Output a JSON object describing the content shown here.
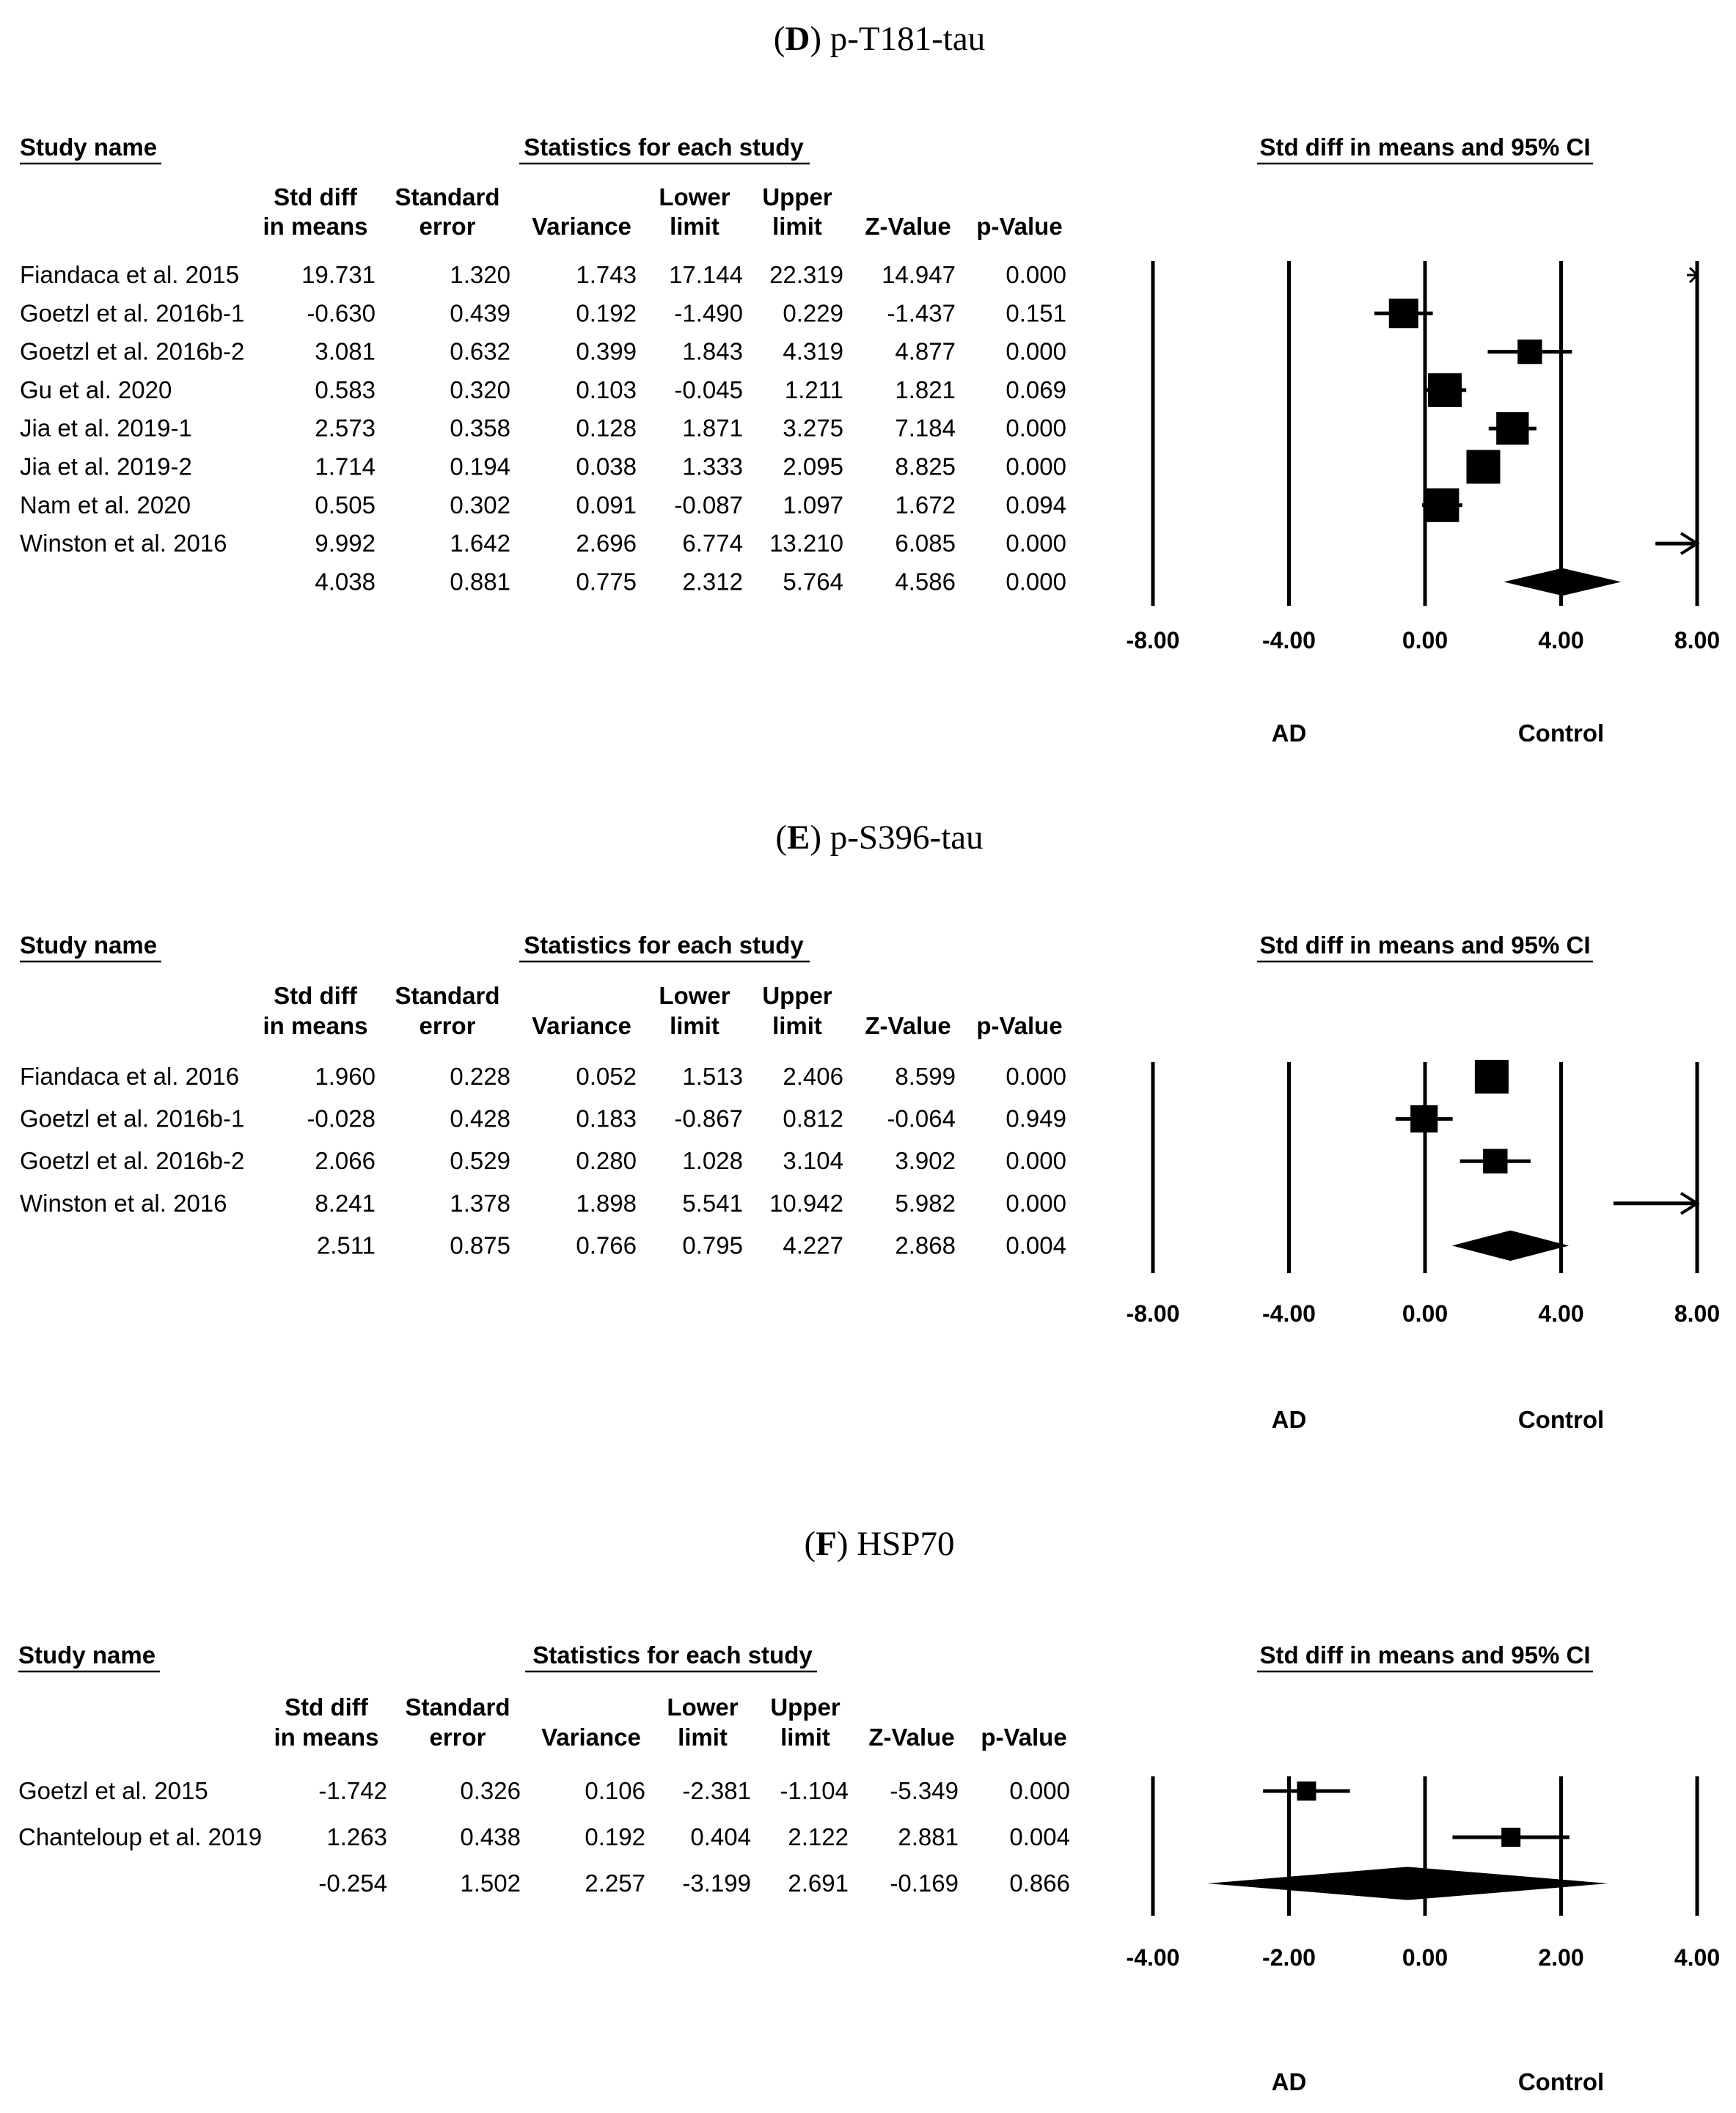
{
  "column_headers": {
    "study_name": "Study name",
    "statistics": "Statistics for each study",
    "ci_title": "Std diff in means and 95% CI",
    "std_diff": [
      "Std diff",
      "in means"
    ],
    "std_error": [
      "Standard",
      "error"
    ],
    "variance": "Variance",
    "lower": [
      "Lower",
      "limit"
    ],
    "upper": [
      "Upper",
      "limit"
    ],
    "z": "Z-Value",
    "p": "p-Value"
  },
  "chart_data": [
    {
      "type": "forest",
      "panel_letter": "D",
      "title": "p-T181-tau",
      "xlim": [
        -8,
        8
      ],
      "ticks": [
        "-8.00",
        "-4.00",
        "0.00",
        "4.00",
        "8.00"
      ],
      "favours_left": "AD",
      "favours_right": "Control",
      "studies": [
        {
          "name": "Fiandaca et al. 2015",
          "std_diff": "19.731",
          "se": "1.320",
          "variance": "1.743",
          "lower": "17.144",
          "upper": "22.319",
          "z": "14.947",
          "p": "0.000"
        },
        {
          "name": "Goetzl et al. 2016b-1",
          "std_diff": "-0.630",
          "se": "0.439",
          "variance": "0.192",
          "lower": "-1.490",
          "upper": "0.229",
          "z": "-1.437",
          "p": "0.151"
        },
        {
          "name": "Goetzl et al. 2016b-2",
          "std_diff": "3.081",
          "se": "0.632",
          "variance": "0.399",
          "lower": "1.843",
          "upper": "4.319",
          "z": "4.877",
          "p": "0.000"
        },
        {
          "name": "Gu et al. 2020",
          "std_diff": "0.583",
          "se": "0.320",
          "variance": "0.103",
          "lower": "-0.045",
          "upper": "1.211",
          "z": "1.821",
          "p": "0.069"
        },
        {
          "name": "Jia et al. 2019-1",
          "std_diff": "2.573",
          "se": "0.358",
          "variance": "0.128",
          "lower": "1.871",
          "upper": "3.275",
          "z": "7.184",
          "p": "0.000"
        },
        {
          "name": "Jia et al. 2019-2",
          "std_diff": "1.714",
          "se": "0.194",
          "variance": "0.038",
          "lower": "1.333",
          "upper": "2.095",
          "z": "8.825",
          "p": "0.000"
        },
        {
          "name": "Nam et al. 2020",
          "std_diff": "0.505",
          "se": "0.302",
          "variance": "0.091",
          "lower": "-0.087",
          "upper": "1.097",
          "z": "1.672",
          "p": "0.094"
        },
        {
          "name": "Winston et al. 2016",
          "std_diff": "9.992",
          "se": "1.642",
          "variance": "2.696",
          "lower": "6.774",
          "upper": "13.210",
          "z": "6.085",
          "p": "0.000"
        }
      ],
      "summary": {
        "std_diff": "4.038",
        "se": "0.881",
        "variance": "0.775",
        "lower": "2.312",
        "upper": "5.764",
        "z": "4.586",
        "p": "0.000"
      }
    },
    {
      "type": "forest",
      "panel_letter": "E",
      "title": "p-S396-tau",
      "xlim": [
        -8,
        8
      ],
      "ticks": [
        "-8.00",
        "-4.00",
        "0.00",
        "4.00",
        "8.00"
      ],
      "favours_left": "AD",
      "favours_right": "Control",
      "studies": [
        {
          "name": "Fiandaca et al. 2016",
          "std_diff": "1.960",
          "se": "0.228",
          "variance": "0.052",
          "lower": "1.513",
          "upper": "2.406",
          "z": "8.599",
          "p": "0.000"
        },
        {
          "name": "Goetzl et al. 2016b-1",
          "std_diff": "-0.028",
          "se": "0.428",
          "variance": "0.183",
          "lower": "-0.867",
          "upper": "0.812",
          "z": "-0.064",
          "p": "0.949"
        },
        {
          "name": "Goetzl et al. 2016b-2",
          "std_diff": "2.066",
          "se": "0.529",
          "variance": "0.280",
          "lower": "1.028",
          "upper": "3.104",
          "z": "3.902",
          "p": "0.000"
        },
        {
          "name": "Winston et al. 2016",
          "std_diff": "8.241",
          "se": "1.378",
          "variance": "1.898",
          "lower": "5.541",
          "upper": "10.942",
          "z": "5.982",
          "p": "0.000"
        }
      ],
      "summary": {
        "std_diff": "2.511",
        "se": "0.875",
        "variance": "0.766",
        "lower": "0.795",
        "upper": "4.227",
        "z": "2.868",
        "p": "0.004"
      }
    },
    {
      "type": "forest",
      "panel_letter": "F",
      "title": "HSP70",
      "xlim": [
        -4,
        4
      ],
      "ticks": [
        "-4.00",
        "-2.00",
        "0.00",
        "2.00",
        "4.00"
      ],
      "favours_left": "AD",
      "favours_right": "Control",
      "studies": [
        {
          "name": "Goetzl et al. 2015",
          "std_diff": "-1.742",
          "se": "0.326",
          "variance": "0.106",
          "lower": "-2.381",
          "upper": "-1.104",
          "z": "-5.349",
          "p": "0.000"
        },
        {
          "name": "Chanteloup et al. 2019",
          "std_diff": "1.263",
          "se": "0.438",
          "variance": "0.192",
          "lower": "0.404",
          "upper": "2.122",
          "z": "2.881",
          "p": "0.004"
        }
      ],
      "summary": {
        "std_diff": "-0.254",
        "se": "1.502",
        "variance": "2.257",
        "lower": "-3.199",
        "upper": "2.691",
        "z": "-0.169",
        "p": "0.866"
      }
    }
  ]
}
